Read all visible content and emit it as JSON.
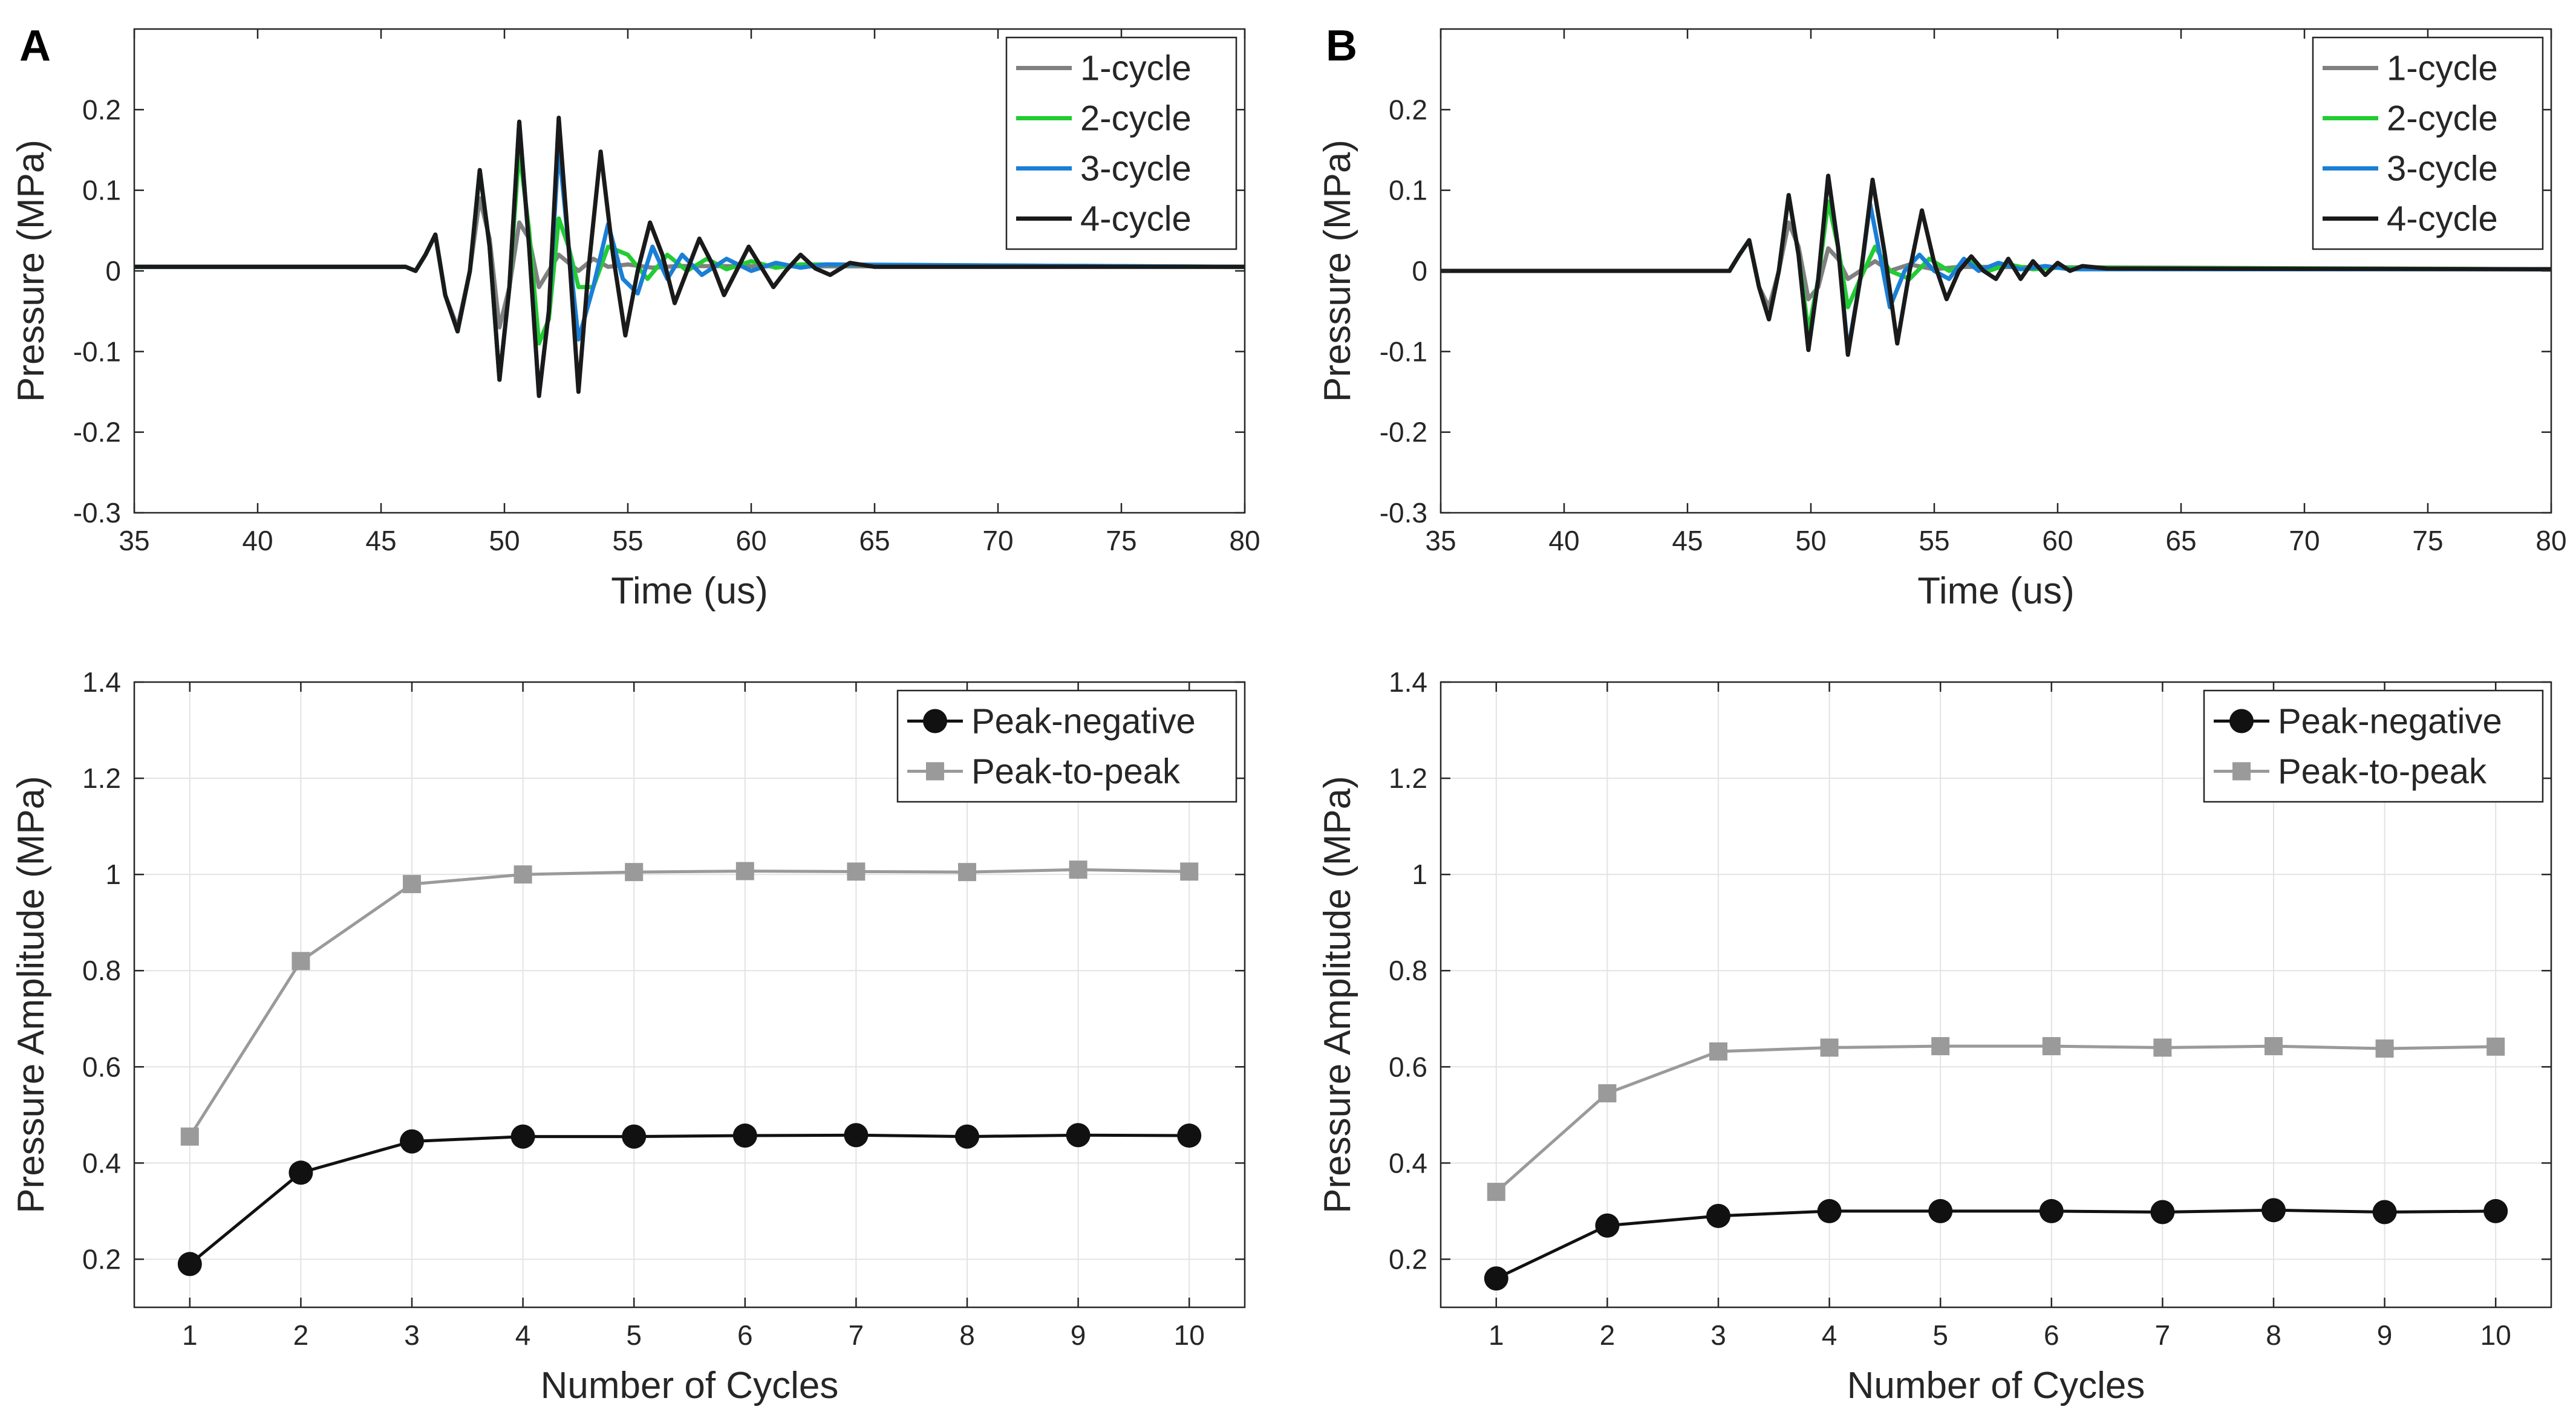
{
  "panel_labels": [
    "A",
    "B"
  ],
  "colors": {
    "cycle_1": "#808080",
    "cycle_2": "#22cc33",
    "cycle_3": "#1a7fd6",
    "cycle_4": "#1a1a1a",
    "peak_negative": "#111111",
    "peak_to_peak": "#9a9a9a",
    "grid": "#e3e3e3",
    "axis": "#262626"
  },
  "chart_data": [
    {
      "type": "line",
      "panel": "A",
      "title": "",
      "xlabel": "Time (us)",
      "ylabel": "Pressure (MPa)",
      "xlim": [
        35,
        80
      ],
      "ylim": [
        -0.3,
        0.3
      ],
      "xticks": [
        35,
        40,
        45,
        50,
        55,
        60,
        65,
        70,
        75,
        80
      ],
      "xtick_labels": [
        "35",
        "40",
        "45",
        "50",
        "55",
        "60",
        "65",
        "70",
        "75",
        "80"
      ],
      "yticks": [
        -0.3,
        -0.2,
        -0.1,
        0,
        0.1,
        0.2
      ],
      "ytick_labels": [
        "-0.3",
        "-0.2",
        "-0.1",
        "0",
        "0.1",
        "0.2"
      ],
      "grid": false,
      "legend_position": "top-right",
      "series": [
        {
          "name": "1-cycle",
          "color_key": "cycle_1",
          "x": [
            35,
            46,
            46.4,
            46.8,
            47.2,
            47.6,
            48.1,
            48.6,
            49.0,
            49.4,
            49.8,
            50.2,
            50.6,
            51.0,
            51.4,
            51.8,
            52.2,
            52.6,
            53.0,
            53.6,
            54.2,
            55.0,
            56.0,
            57.0,
            80
          ],
          "values": [
            0.005,
            0.005,
            0.0,
            0.02,
            0.045,
            -0.03,
            -0.07,
            0.0,
            0.09,
            0.04,
            -0.07,
            -0.02,
            0.06,
            0.04,
            -0.02,
            0.0,
            0.02,
            0.01,
            0.0,
            0.015,
            0.005,
            0.008,
            0.004,
            0.006,
            0.005
          ]
        },
        {
          "name": "2-cycle",
          "color_key": "cycle_2",
          "x": [
            35,
            46,
            46.4,
            46.8,
            47.2,
            47.6,
            48.1,
            48.6,
            49.0,
            49.4,
            49.8,
            50.2,
            50.6,
            51.0,
            51.4,
            51.8,
            52.2,
            52.6,
            53.0,
            53.6,
            54.2,
            55.0,
            55.8,
            56.6,
            57.4,
            58.2,
            59.0,
            60.0,
            61.0,
            62.0,
            80
          ],
          "values": [
            0.005,
            0.005,
            0.0,
            0.02,
            0.045,
            -0.03,
            -0.075,
            0.0,
            0.125,
            0.03,
            -0.135,
            -0.02,
            0.15,
            0.05,
            -0.09,
            -0.06,
            0.065,
            0.03,
            -0.02,
            -0.02,
            0.03,
            0.02,
            -0.01,
            0.02,
            0.0,
            0.015,
            0.002,
            0.012,
            0.004,
            0.008,
            0.005
          ]
        },
        {
          "name": "3-cycle",
          "color_key": "cycle_3",
          "x": [
            35,
            46,
            46.4,
            46.8,
            47.2,
            47.6,
            48.1,
            48.6,
            49.0,
            49.4,
            49.8,
            50.2,
            50.6,
            51.0,
            51.4,
            51.8,
            52.2,
            52.6,
            53.0,
            53.6,
            54.2,
            54.8,
            55.4,
            56.0,
            56.6,
            57.2,
            58.0,
            59.0,
            60.0,
            61.0,
            62.0,
            63.0,
            80
          ],
          "values": [
            0.005,
            0.005,
            0.0,
            0.02,
            0.045,
            -0.03,
            -0.075,
            0.0,
            0.125,
            0.03,
            -0.135,
            -0.02,
            0.185,
            0.03,
            -0.155,
            -0.05,
            0.155,
            0.03,
            -0.085,
            -0.02,
            0.058,
            -0.01,
            -0.028,
            0.03,
            -0.01,
            0.02,
            -0.005,
            0.015,
            0.0,
            0.01,
            0.004,
            0.008,
            0.005
          ]
        },
        {
          "name": "4-cycle",
          "color_key": "cycle_4",
          "x": [
            35,
            46,
            46.4,
            46.8,
            47.2,
            47.6,
            48.1,
            48.6,
            49.0,
            49.4,
            49.8,
            50.2,
            50.6,
            51.0,
            51.4,
            51.8,
            52.2,
            52.6,
            53.0,
            53.4,
            53.9,
            54.4,
            54.9,
            55.4,
            55.9,
            56.4,
            56.9,
            57.4,
            57.9,
            58.4,
            58.9,
            59.4,
            59.9,
            60.4,
            60.9,
            61.4,
            62.0,
            62.6,
            63.2,
            64.0,
            65.0,
            80
          ],
          "values": [
            0.005,
            0.005,
            0.0,
            0.02,
            0.045,
            -0.03,
            -0.075,
            0.0,
            0.125,
            0.03,
            -0.135,
            -0.02,
            0.185,
            0.03,
            -0.155,
            -0.05,
            0.19,
            0.03,
            -0.15,
            0.0,
            0.148,
            0.02,
            -0.08,
            0.0,
            0.06,
            0.02,
            -0.04,
            0.0,
            0.04,
            0.01,
            -0.03,
            0.0,
            0.03,
            0.005,
            -0.02,
            0.0,
            0.02,
            0.003,
            -0.005,
            0.01,
            0.005,
            0.005
          ]
        }
      ]
    },
    {
      "type": "line",
      "panel": "B",
      "title": "",
      "xlabel": "Time (us)",
      "ylabel": "Pressure (MPa)",
      "xlim": [
        35,
        80
      ],
      "ylim": [
        -0.3,
        0.3
      ],
      "xticks": [
        35,
        40,
        45,
        50,
        55,
        60,
        65,
        70,
        75,
        80
      ],
      "xtick_labels": [
        "35",
        "40",
        "45",
        "50",
        "55",
        "60",
        "65",
        "70",
        "75",
        "80"
      ],
      "yticks": [
        -0.3,
        -0.2,
        -0.1,
        0,
        0.1,
        0.2
      ],
      "ytick_labels": [
        "-0.3",
        "-0.2",
        "-0.1",
        "0",
        "0.1",
        "0.2"
      ],
      "grid": false,
      "legend_position": "top-right",
      "series": [
        {
          "name": "1-cycle",
          "color_key": "cycle_1",
          "x": [
            35,
            46.3,
            46.7,
            47.1,
            47.5,
            47.9,
            48.3,
            48.7,
            49.1,
            49.5,
            49.9,
            50.3,
            50.7,
            51.1,
            51.5,
            52.0,
            52.6,
            53.2,
            54.0,
            55.0,
            56.0,
            80
          ],
          "values": [
            0.0,
            0.0,
            0.0,
            0.02,
            0.038,
            -0.02,
            -0.045,
            0.0,
            0.06,
            0.03,
            -0.035,
            -0.02,
            0.028,
            0.015,
            -0.01,
            0.0,
            0.012,
            0.0,
            0.008,
            0.002,
            0.005,
            0.002
          ]
        },
        {
          "name": "2-cycle",
          "color_key": "cycle_2",
          "x": [
            35,
            46.3,
            46.7,
            47.1,
            47.5,
            47.9,
            48.3,
            48.7,
            49.1,
            49.5,
            49.9,
            50.3,
            50.7,
            51.1,
            51.5,
            52.0,
            52.6,
            53.2,
            54.0,
            54.8,
            55.6,
            56.4,
            57.2,
            58.0,
            59.0,
            60.0,
            80
          ],
          "values": [
            0.0,
            0.0,
            0.0,
            0.02,
            0.038,
            -0.02,
            -0.06,
            0.0,
            0.094,
            0.02,
            -0.075,
            -0.01,
            0.086,
            0.03,
            -0.045,
            -0.01,
            0.03,
            0.0,
            -0.01,
            0.015,
            0.0,
            0.012,
            0.0,
            0.008,
            0.002,
            0.004,
            0.002
          ]
        },
        {
          "name": "3-cycle",
          "color_key": "cycle_3",
          "x": [
            35,
            46.3,
            46.7,
            47.1,
            47.5,
            47.9,
            48.3,
            48.7,
            49.1,
            49.5,
            49.9,
            50.3,
            50.7,
            51.1,
            51.5,
            52.0,
            52.4,
            52.8,
            53.2,
            53.8,
            54.4,
            55.0,
            55.6,
            56.2,
            56.8,
            57.6,
            58.5,
            59.5,
            60.5,
            80
          ],
          "values": [
            0.0,
            0.0,
            0.0,
            0.02,
            0.038,
            -0.02,
            -0.06,
            0.0,
            0.094,
            0.02,
            -0.098,
            -0.01,
            0.118,
            0.03,
            -0.1,
            -0.01,
            0.083,
            0.02,
            -0.045,
            0.0,
            0.02,
            0.0,
            -0.01,
            0.015,
            0.0,
            0.01,
            0.002,
            0.006,
            0.002,
            0.002
          ]
        },
        {
          "name": "4-cycle",
          "color_key": "cycle_4",
          "x": [
            35,
            46.3,
            46.7,
            47.1,
            47.5,
            47.9,
            48.3,
            48.7,
            49.1,
            49.5,
            49.9,
            50.3,
            50.7,
            51.1,
            51.5,
            52.0,
            52.5,
            53.0,
            53.5,
            54.0,
            54.5,
            55.0,
            55.5,
            56.0,
            56.5,
            57.0,
            57.5,
            58.0,
            58.5,
            59.0,
            59.5,
            60.0,
            60.5,
            61.0,
            62.0,
            80
          ],
          "values": [
            0.0,
            0.0,
            0.0,
            0.02,
            0.038,
            -0.02,
            -0.06,
            0.0,
            0.094,
            0.02,
            -0.098,
            -0.01,
            0.118,
            0.03,
            -0.104,
            -0.01,
            0.113,
            0.02,
            -0.09,
            0.0,
            0.075,
            0.01,
            -0.035,
            0.0,
            0.018,
            0.0,
            -0.01,
            0.015,
            -0.01,
            0.012,
            -0.005,
            0.01,
            0.0,
            0.006,
            0.003,
            0.002
          ]
        }
      ]
    },
    {
      "type": "line",
      "panel": "A",
      "title": "",
      "xlabel": "Number of Cycles",
      "ylabel": "Pressure Amplitude (MPa)",
      "xlim": [
        0.5,
        10.5
      ],
      "ylim": [
        0.1,
        1.4
      ],
      "xticks": [
        1,
        2,
        3,
        4,
        5,
        6,
        7,
        8,
        9,
        10
      ],
      "xtick_labels": [
        "1",
        "2",
        "3",
        "4",
        "5",
        "6",
        "7",
        "8",
        "9",
        "10"
      ],
      "yticks": [
        0.2,
        0.4,
        0.6,
        0.8,
        1.0,
        1.2,
        1.4
      ],
      "ytick_labels": [
        "0.2",
        "0.4",
        "0.6",
        "0.8",
        "1",
        "1.2",
        "1.4"
      ],
      "grid": true,
      "legend_position": "top-right",
      "x": [
        1,
        2,
        3,
        4,
        5,
        6,
        7,
        8,
        9,
        10
      ],
      "series": [
        {
          "name": "Peak-negative",
          "color_key": "peak_negative",
          "marker": "circle",
          "values": [
            0.19,
            0.38,
            0.445,
            0.455,
            0.455,
            0.457,
            0.458,
            0.455,
            0.458,
            0.457
          ]
        },
        {
          "name": "Peak-to-peak",
          "color_key": "peak_to_peak",
          "marker": "square",
          "values": [
            0.455,
            0.82,
            0.98,
            1.0,
            1.005,
            1.007,
            1.006,
            1.005,
            1.01,
            1.006
          ]
        }
      ]
    },
    {
      "type": "line",
      "panel": "B",
      "title": "",
      "xlabel": "Number of Cycles",
      "ylabel": "Pressure Amplitude (MPa)",
      "xlim": [
        0.5,
        10.5
      ],
      "ylim": [
        0.1,
        1.4
      ],
      "xticks": [
        1,
        2,
        3,
        4,
        5,
        6,
        7,
        8,
        9,
        10
      ],
      "xtick_labels": [
        "1",
        "2",
        "3",
        "4",
        "5",
        "6",
        "7",
        "8",
        "9",
        "10"
      ],
      "yticks": [
        0.2,
        0.4,
        0.6,
        0.8,
        1.0,
        1.2,
        1.4
      ],
      "ytick_labels": [
        "0.2",
        "0.4",
        "0.6",
        "0.8",
        "1",
        "1.2",
        "1.4"
      ],
      "grid": true,
      "legend_position": "top-right",
      "x": [
        1,
        2,
        3,
        4,
        5,
        6,
        7,
        8,
        9,
        10
      ],
      "series": [
        {
          "name": "Peak-negative",
          "color_key": "peak_negative",
          "marker": "circle",
          "values": [
            0.16,
            0.27,
            0.29,
            0.3,
            0.3,
            0.3,
            0.298,
            0.302,
            0.298,
            0.3
          ]
        },
        {
          "name": "Peak-to-peak",
          "color_key": "peak_to_peak",
          "marker": "square",
          "values": [
            0.34,
            0.545,
            0.632,
            0.64,
            0.643,
            0.643,
            0.64,
            0.643,
            0.638,
            0.642
          ]
        }
      ]
    }
  ]
}
